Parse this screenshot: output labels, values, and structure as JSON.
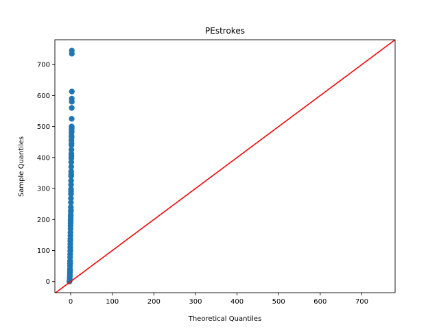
{
  "chart_data": {
    "type": "scatter",
    "title": "PEstrokes",
    "xlabel": "Theoretical Quantiles",
    "ylabel": "Sample Quantiles",
    "xlim": [
      -38,
      780
    ],
    "ylim": [
      -36,
      780
    ],
    "xticks": [
      0,
      100,
      200,
      300,
      400,
      500,
      600,
      700
    ],
    "yticks": [
      0,
      100,
      200,
      300,
      400,
      500,
      600,
      700
    ],
    "grid": false,
    "colors": {
      "points": "#1f77b4",
      "reference_line": "#ff0000"
    },
    "series": [
      {
        "kind": "points",
        "x": [
          -2.6,
          -2.3,
          -2.1,
          -1.9,
          -1.8,
          -1.7,
          -1.6,
          -1.5,
          -1.4,
          -1.3,
          -1.2,
          -1.1,
          -1.0,
          -0.9,
          -0.8,
          -0.7,
          -0.6,
          -0.5,
          -0.4,
          -0.3,
          -0.2,
          -0.1,
          0.0,
          0.1,
          0.2,
          0.3,
          0.4,
          0.5,
          0.6,
          0.7,
          0.8,
          0.9,
          1.0,
          1.1,
          1.2,
          1.3,
          1.4,
          1.5,
          1.6,
          1.7,
          1.8,
          1.9,
          2.0,
          2.1,
          2.2,
          2.3,
          2.4,
          2.5,
          2.6,
          2.7
        ],
        "y": [
          2,
          8,
          15,
          22,
          30,
          40,
          50,
          58,
          67,
          78,
          88,
          98,
          110,
          120,
          130,
          138,
          148,
          158,
          170,
          180,
          188,
          195,
          200,
          208,
          215,
          225,
          240,
          255,
          268,
          282,
          298,
          312,
          325,
          340,
          355,
          370,
          385,
          398,
          412,
          425,
          440,
          455,
          470,
          480,
          490,
          500,
          525,
          560,
          590,
          745
        ]
      },
      {
        "kind": "reference-line",
        "x": [
          -38,
          780
        ],
        "y": [
          -38,
          780
        ]
      }
    ],
    "extra_points": [
      {
        "x": -3.0,
        "y": 0
      },
      {
        "x": 2.7,
        "y": 580
      },
      {
        "x": 2.8,
        "y": 613
      },
      {
        "x": 2.8,
        "y": 735
      },
      {
        "x": 2.5,
        "y": 495
      },
      {
        "x": 2.4,
        "y": 485
      },
      {
        "x": -0.8,
        "y": 100
      },
      {
        "x": -1.2,
        "y": 60
      },
      {
        "x": -1.5,
        "y": 35
      },
      {
        "x": 0.6,
        "y": 230
      },
      {
        "x": 0.9,
        "y": 290
      },
      {
        "x": 1.3,
        "y": 345
      },
      {
        "x": 1.7,
        "y": 405
      },
      {
        "x": 2.0,
        "y": 445
      },
      {
        "x": 2.2,
        "y": 465
      }
    ]
  }
}
